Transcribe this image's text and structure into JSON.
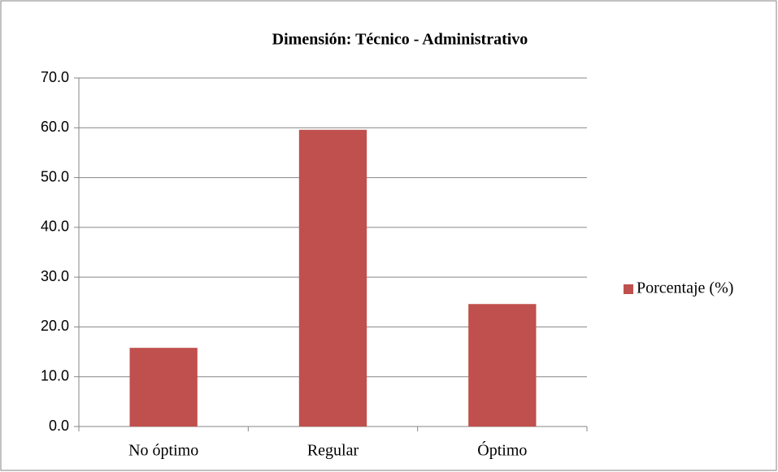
{
  "chart_data": {
    "type": "bar",
    "title": "Dimensión: Técnico - Administrativo",
    "categories": [
      "No óptimo",
      "Regular",
      "Óptimo"
    ],
    "series": [
      {
        "name": "Porcentaje (%)",
        "color": "#c0504d",
        "values": [
          15.8,
          59.6,
          24.6
        ]
      }
    ],
    "ylim": [
      0,
      70
    ],
    "yticks": [
      {
        "value": 0,
        "label": "0.0"
      },
      {
        "value": 10,
        "label": "10.0"
      },
      {
        "value": 20,
        "label": "20.0"
      },
      {
        "value": 30,
        "label": "30.0"
      },
      {
        "value": 40,
        "label": "40.0"
      },
      {
        "value": 50,
        "label": "50.0"
      },
      {
        "value": 60,
        "label": "60.0"
      },
      {
        "value": 70,
        "label": "70.0"
      }
    ],
    "grid": true,
    "legend": "right"
  }
}
